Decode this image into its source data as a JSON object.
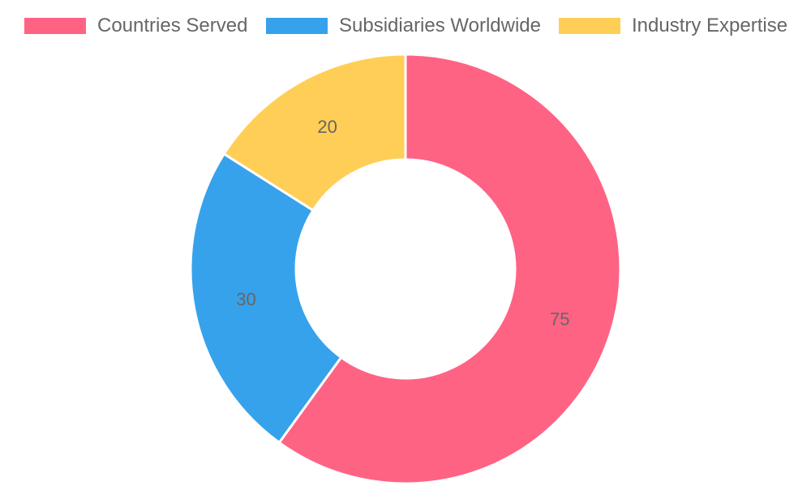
{
  "chart_data": {
    "type": "pie",
    "variant": "doughnut",
    "categories": [
      "Countries Served",
      "Subsidiaries Worldwide",
      "Industry Expertise"
    ],
    "values": [
      75,
      30,
      20
    ],
    "colors": [
      "#ff6384",
      "#36a2eb",
      "#ffce56"
    ],
    "data_labels": [
      "75",
      "30",
      "20"
    ],
    "legend_position": "top",
    "title": ""
  }
}
